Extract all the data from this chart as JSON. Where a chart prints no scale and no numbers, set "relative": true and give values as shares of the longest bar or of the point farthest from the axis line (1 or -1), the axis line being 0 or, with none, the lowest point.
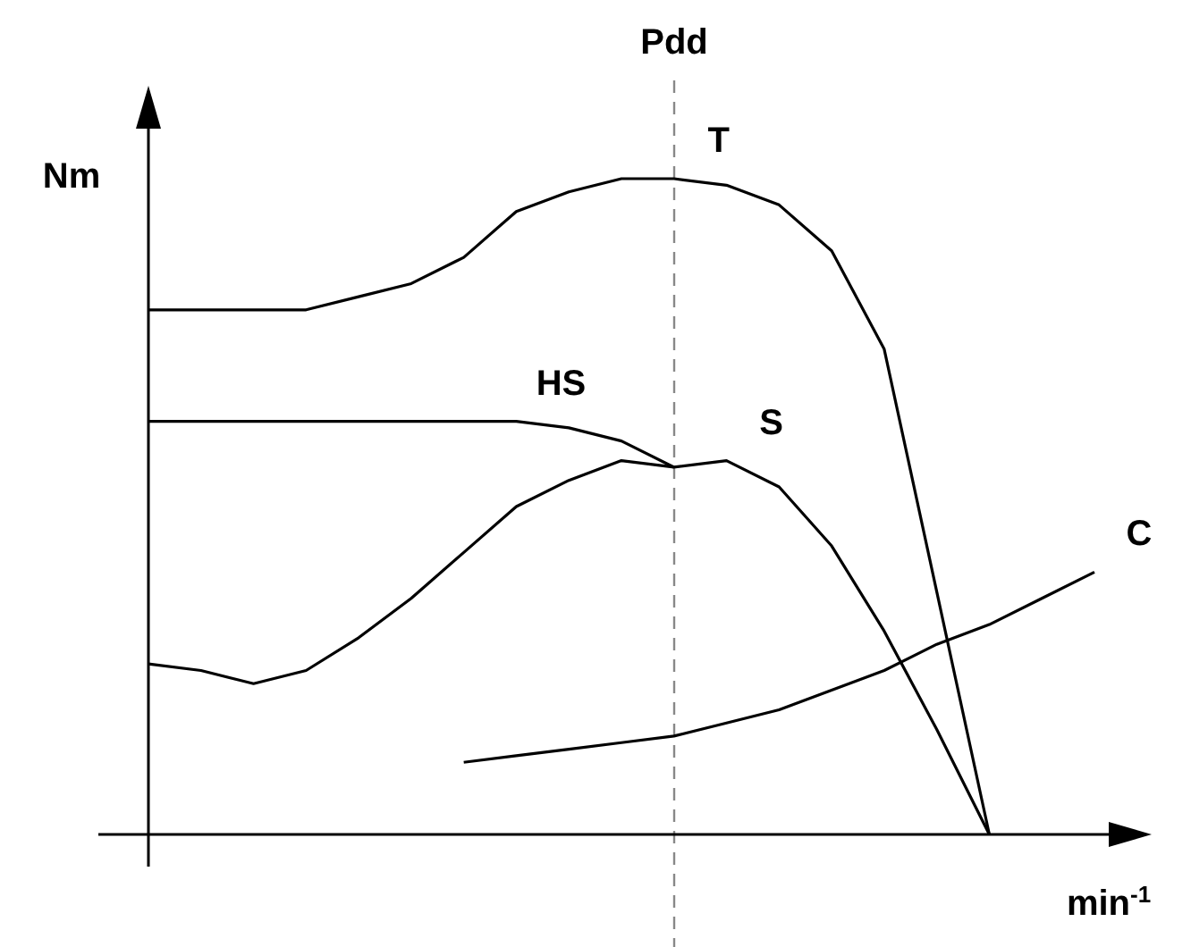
{
  "chart_data": {
    "type": "line",
    "relative": true,
    "xlabel": "min$^{-1}$",
    "ylabel": "Nm",
    "categories": [
      null,
      null,
      null,
      null,
      null,
      null,
      null,
      null,
      null,
      null,
      null,
      null,
      null,
      null,
      null,
      null,
      null,
      null,
      null
    ],
    "annotations": [
      "Pdd"
    ],
    "series": [
      {
        "name": "T",
        "color": "#000000",
        "values": [
          0.8,
          0.8,
          0.8,
          0.8,
          0.82,
          0.84,
          0.88,
          0.95,
          0.98,
          1.0,
          1.0,
          0.99,
          0.96,
          0.89,
          0.74,
          0.37,
          0,
          null,
          null
        ]
      },
      {
        "name": "HS",
        "color": "#000000",
        "values": [
          0.63,
          0.63,
          0.63,
          0.63,
          0.63,
          0.63,
          0.63,
          0.63,
          0.62,
          0.6,
          0.56,
          null,
          null,
          null,
          null,
          null,
          null,
          null,
          null
        ]
      },
      {
        "name": "S",
        "color": "#000000",
        "values": [
          0.26,
          0.25,
          0.23,
          0.25,
          0.3,
          0.36,
          0.43,
          0.5,
          0.54,
          0.57,
          0.56,
          0.57,
          0.53,
          0.44,
          0.31,
          0.16,
          0,
          null,
          null
        ]
      },
      {
        "name": "C",
        "color": "#000000",
        "values": [
          null,
          null,
          null,
          null,
          null,
          null,
          0.11,
          0.12,
          0.13,
          0.14,
          0.15,
          0.17,
          0.19,
          0.22,
          0.25,
          0.29,
          0.32,
          0.36,
          0.4
        ]
      }
    ],
    "legend": false,
    "marker": "none",
    "line_style": "solid"
  }
}
